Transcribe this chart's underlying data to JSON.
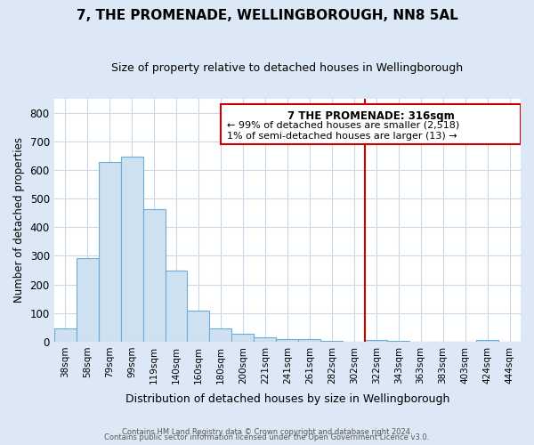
{
  "title": "7, THE PROMENADE, WELLINGBOROUGH, NN8 5AL",
  "subtitle": "Size of property relative to detached houses in Wellingborough",
  "xlabel": "Distribution of detached houses by size in Wellingborough",
  "ylabel": "Number of detached properties",
  "bin_labels": [
    "38sqm",
    "58sqm",
    "79sqm",
    "99sqm",
    "119sqm",
    "140sqm",
    "160sqm",
    "180sqm",
    "200sqm",
    "221sqm",
    "241sqm",
    "261sqm",
    "282sqm",
    "302sqm",
    "322sqm",
    "343sqm",
    "363sqm",
    "383sqm",
    "403sqm",
    "424sqm",
    "444sqm"
  ],
  "bar_heights": [
    47,
    293,
    628,
    645,
    462,
    250,
    110,
    47,
    28,
    15,
    10,
    10,
    2,
    0,
    5,
    2,
    0,
    0,
    0,
    5,
    0
  ],
  "bar_color": "#cfe0f0",
  "bar_edge_color": "#6aaed6",
  "ylim": [
    0,
    850
  ],
  "yticks": [
    0,
    100,
    200,
    300,
    400,
    500,
    600,
    700,
    800
  ],
  "vline_color": "#cc0000",
  "vline_bin_index": 14,
  "annotation_title": "7 THE PROMENADE: 316sqm",
  "annotation_line1": "← 99% of detached houses are smaller (2,518)",
  "annotation_line2": "1% of semi-detached houses are larger (13) →",
  "annotation_box_edge": "#cc0000",
  "footer_line1": "Contains HM Land Registry data © Crown copyright and database right 2024.",
  "footer_line2": "Contains public sector information licensed under the Open Government Licence v3.0.",
  "background_color": "#dce8f5",
  "plot_bg_color": "#ffffff",
  "grid_color": "#c8d8e8"
}
